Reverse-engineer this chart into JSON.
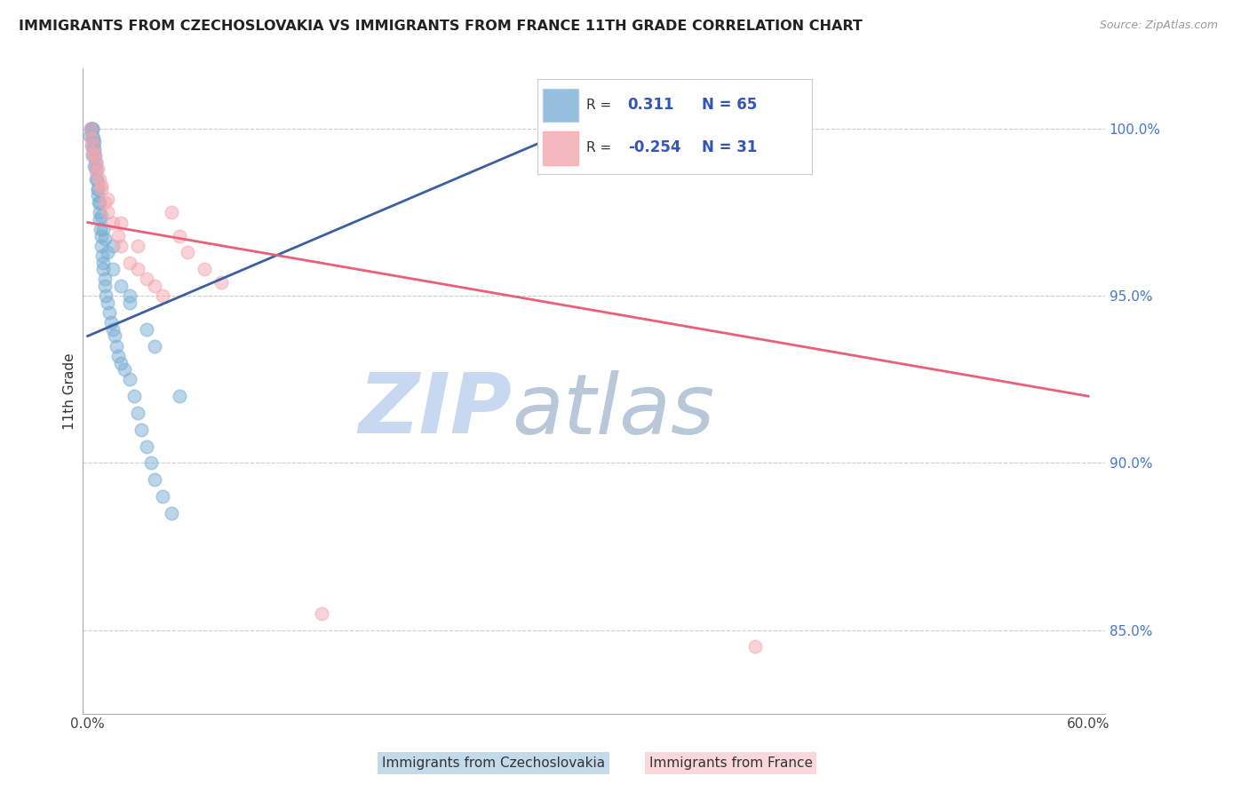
{
  "title": "IMMIGRANTS FROM CZECHOSLOVAKIA VS IMMIGRANTS FROM FRANCE 11TH GRADE CORRELATION CHART",
  "source": "Source: ZipAtlas.com",
  "xlabel_blue": "Immigrants from Czechoslovakia",
  "xlabel_pink": "Immigrants from France",
  "ylabel": "11th Grade",
  "xlim": [
    0.0,
    60.0
  ],
  "ylim": [
    83.0,
    101.5
  ],
  "xtick_labels": [
    "0.0%",
    "",
    "",
    "",
    "",
    "",
    "60.0%"
  ],
  "ytick_labels": [
    "85.0%",
    "90.0%",
    "95.0%",
    "100.0%"
  ],
  "yticks": [
    85.0,
    90.0,
    95.0,
    100.0
  ],
  "xticks": [
    0.0,
    10.0,
    20.0,
    30.0,
    40.0,
    50.0,
    60.0
  ],
  "r_blue": "0.311",
  "n_blue": "65",
  "r_pink": "-0.254",
  "n_pink": "31",
  "blue_scatter_color": "#7BAFD4",
  "pink_scatter_color": "#F4A7B0",
  "blue_line_color": "#3B5FA0",
  "pink_line_color": "#E8607A",
  "blue_line_x": [
    0.0,
    30.0
  ],
  "blue_line_y": [
    93.8,
    100.2
  ],
  "pink_line_x": [
    0.0,
    60.0
  ],
  "pink_line_y": [
    97.2,
    92.0
  ],
  "blue_scatter_x": [
    0.1,
    0.15,
    0.2,
    0.25,
    0.3,
    0.3,
    0.35,
    0.35,
    0.4,
    0.4,
    0.45,
    0.5,
    0.5,
    0.55,
    0.6,
    0.6,
    0.65,
    0.7,
    0.7,
    0.75,
    0.8,
    0.8,
    0.85,
    0.9,
    0.9,
    1.0,
    1.0,
    1.1,
    1.2,
    1.3,
    1.4,
    1.5,
    1.6,
    1.7,
    1.8,
    2.0,
    2.2,
    2.5,
    2.8,
    3.0,
    3.2,
    3.5,
    3.8,
    4.0,
    4.5,
    5.0,
    0.2,
    0.3,
    0.4,
    0.5,
    0.6,
    0.7,
    0.8,
    0.9,
    1.0,
    1.2,
    1.5,
    2.0,
    2.5,
    1.5,
    2.5,
    3.5,
    4.0,
    5.5,
    30.0
  ],
  "blue_scatter_y": [
    99.8,
    100.0,
    100.0,
    100.0,
    100.0,
    99.8,
    99.7,
    99.5,
    99.6,
    99.4,
    99.2,
    99.0,
    98.8,
    98.5,
    98.2,
    98.0,
    97.8,
    97.5,
    97.3,
    97.0,
    96.8,
    96.5,
    96.2,
    96.0,
    95.8,
    95.5,
    95.3,
    95.0,
    94.8,
    94.5,
    94.2,
    94.0,
    93.8,
    93.5,
    93.2,
    93.0,
    92.8,
    92.5,
    92.0,
    91.5,
    91.0,
    90.5,
    90.0,
    89.5,
    89.0,
    88.5,
    99.5,
    99.2,
    98.9,
    98.5,
    98.2,
    97.8,
    97.4,
    97.0,
    96.7,
    96.3,
    95.8,
    95.3,
    94.8,
    96.5,
    95.0,
    94.0,
    93.5,
    92.0,
    100.0
  ],
  "pink_scatter_x": [
    0.15,
    0.2,
    0.3,
    0.4,
    0.5,
    0.6,
    0.7,
    0.8,
    1.0,
    1.2,
    1.5,
    1.8,
    2.0,
    2.5,
    3.0,
    3.5,
    4.0,
    4.5,
    5.0,
    5.5,
    6.0,
    7.0,
    8.0,
    0.3,
    0.5,
    0.8,
    1.2,
    2.0,
    3.0,
    14.0,
    40.0
  ],
  "pink_scatter_y": [
    100.0,
    99.7,
    99.5,
    99.2,
    99.0,
    98.8,
    98.5,
    98.2,
    97.8,
    97.5,
    97.2,
    96.8,
    96.5,
    96.0,
    95.8,
    95.5,
    95.3,
    95.0,
    97.5,
    96.8,
    96.3,
    95.8,
    95.4,
    99.3,
    98.7,
    98.3,
    97.9,
    97.2,
    96.5,
    85.5,
    84.5
  ],
  "watermark_zip": "ZIP",
  "watermark_atlas": "atlas",
  "watermark_zip_color": "#C8D8F0",
  "watermark_atlas_color": "#B8C8D8"
}
